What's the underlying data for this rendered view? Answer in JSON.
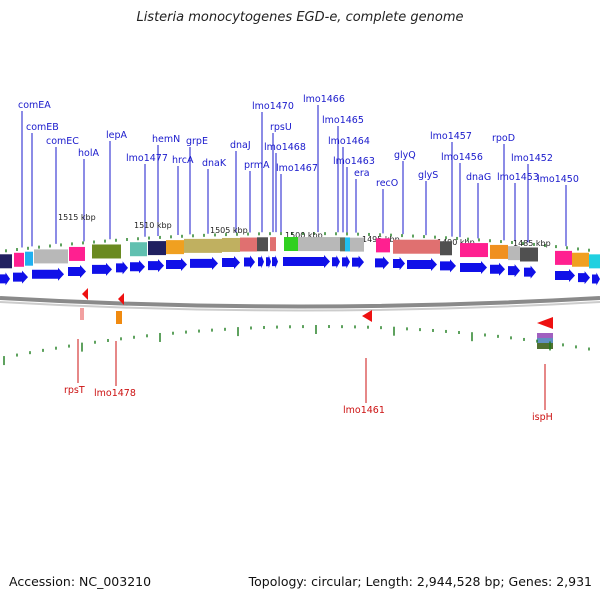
{
  "title": "Listeria monocytogenes EGD-e, complete genome",
  "footer": {
    "accession": "Accession: NC_003210",
    "summary": "Topology: circular; Length: 2,944,528 bp; Genes: 2,931"
  },
  "colors": {
    "forward_arrow": "#1010e8",
    "reverse_arrow": "#ee1111",
    "label_forward": "#1a1acc",
    "label_reverse": "#cc1111",
    "tick": "#1a7a1a",
    "backbone": "#8a8a8a"
  },
  "scale_ticks": [
    {
      "label": "1515 kbp"
    },
    {
      "label": "1510 kbp"
    },
    {
      "label": "1505 kbp"
    },
    {
      "label": "1500 kbp"
    },
    {
      "label": "1495 kbp"
    },
    {
      "label": "1490 kbp"
    },
    {
      "label": "1485 kbp"
    }
  ],
  "forward_labels": [
    "comEA",
    "comEB",
    "comEC",
    "holA",
    "lepA",
    "lmo1477",
    "hemN",
    "hrcA",
    "grpE",
    "dnaK",
    "dnaJ",
    "prmA",
    "lmo1470",
    "rpsU",
    "lmo1468",
    "lmo1467",
    "lmo1466",
    "lmo1465",
    "lmo1464",
    "lmo1463",
    "era",
    "recO",
    "glyQ",
    "glyS",
    "lmo1457",
    "lmo1456",
    "dnaG",
    "rpoD",
    "lmo1453",
    "lmo1452",
    "lmo1450"
  ],
  "reverse_labels": [
    "rpsT",
    "lmo1478",
    "lmo1461",
    "ispH"
  ]
}
